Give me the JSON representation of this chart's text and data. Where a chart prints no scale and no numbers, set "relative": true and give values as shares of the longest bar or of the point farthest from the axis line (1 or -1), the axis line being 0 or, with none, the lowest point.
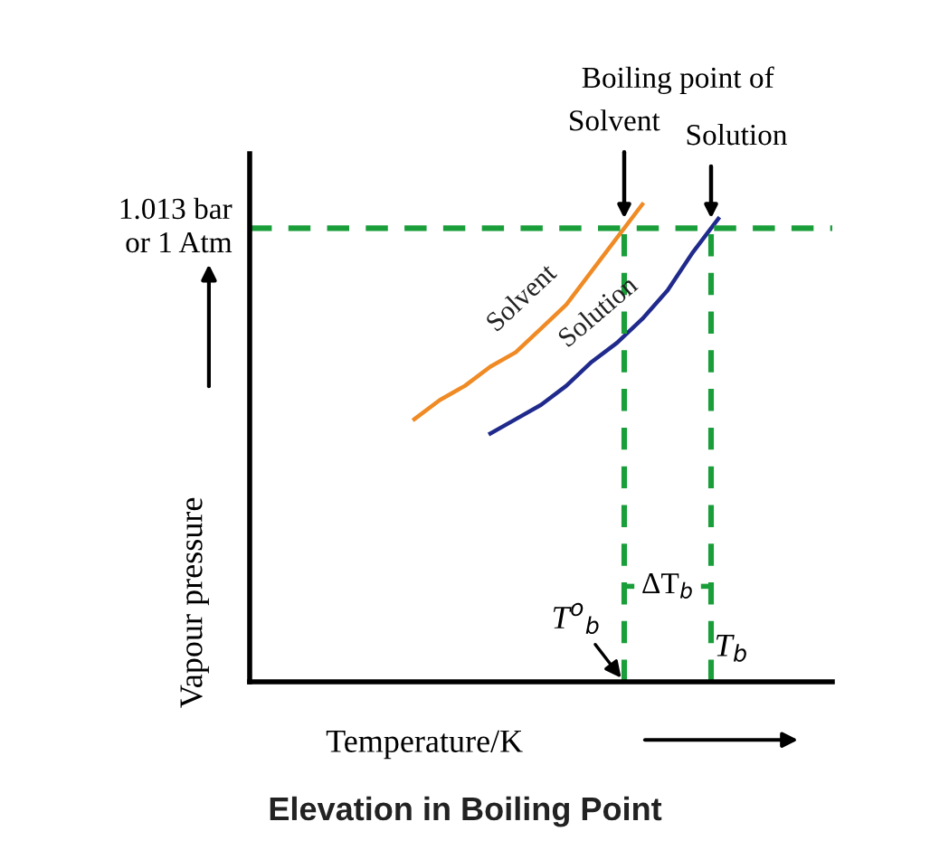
{
  "chart_data": {
    "type": "line",
    "relative": true,
    "title": "Elevation in Boiling Point",
    "xlabel": "Temperature/K",
    "ylabel": "Vapour pressure",
    "categories": [
      null,
      null,
      null,
      null,
      null,
      null,
      null,
      null,
      null,
      null,
      null,
      null,
      null,
      null,
      null,
      null,
      null,
      null,
      null,
      null,
      null,
      null,
      null
    ],
    "series": [
      {
        "name": "Solvent",
        "color": "#f08a24",
        "values": [
          null,
          null,
          null,
          null,
          null,
          null,
          0.55,
          0.59,
          0.62,
          0.66,
          0.69,
          0.74,
          0.79,
          0.86,
          0.93,
          1.0,
          null,
          null,
          null,
          null,
          null,
          null,
          null
        ]
      },
      {
        "name": "Solution",
        "color": "#1f2a8c",
        "values": [
          null,
          null,
          null,
          null,
          null,
          null,
          null,
          null,
          null,
          0.52,
          0.55,
          0.58,
          0.62,
          0.67,
          0.71,
          0.76,
          0.82,
          0.9,
          0.97,
          null,
          null,
          null,
          null
        ]
      }
    ],
    "ref_lines": [
      {
        "axis": "y",
        "value": 0.95,
        "label": "1.013 bar\nor 1 Atm",
        "color": "#1a9e3a",
        "line_style": "dashed"
      }
    ],
    "annotations": [
      "Boiling point of",
      "Solvent",
      "Solution",
      "ΔT$_{b}$",
      "T$^{o}$$_{b}$",
      "T$_{b}$"
    ],
    "legend": false,
    "marker": "none",
    "line_style": "solid"
  }
}
